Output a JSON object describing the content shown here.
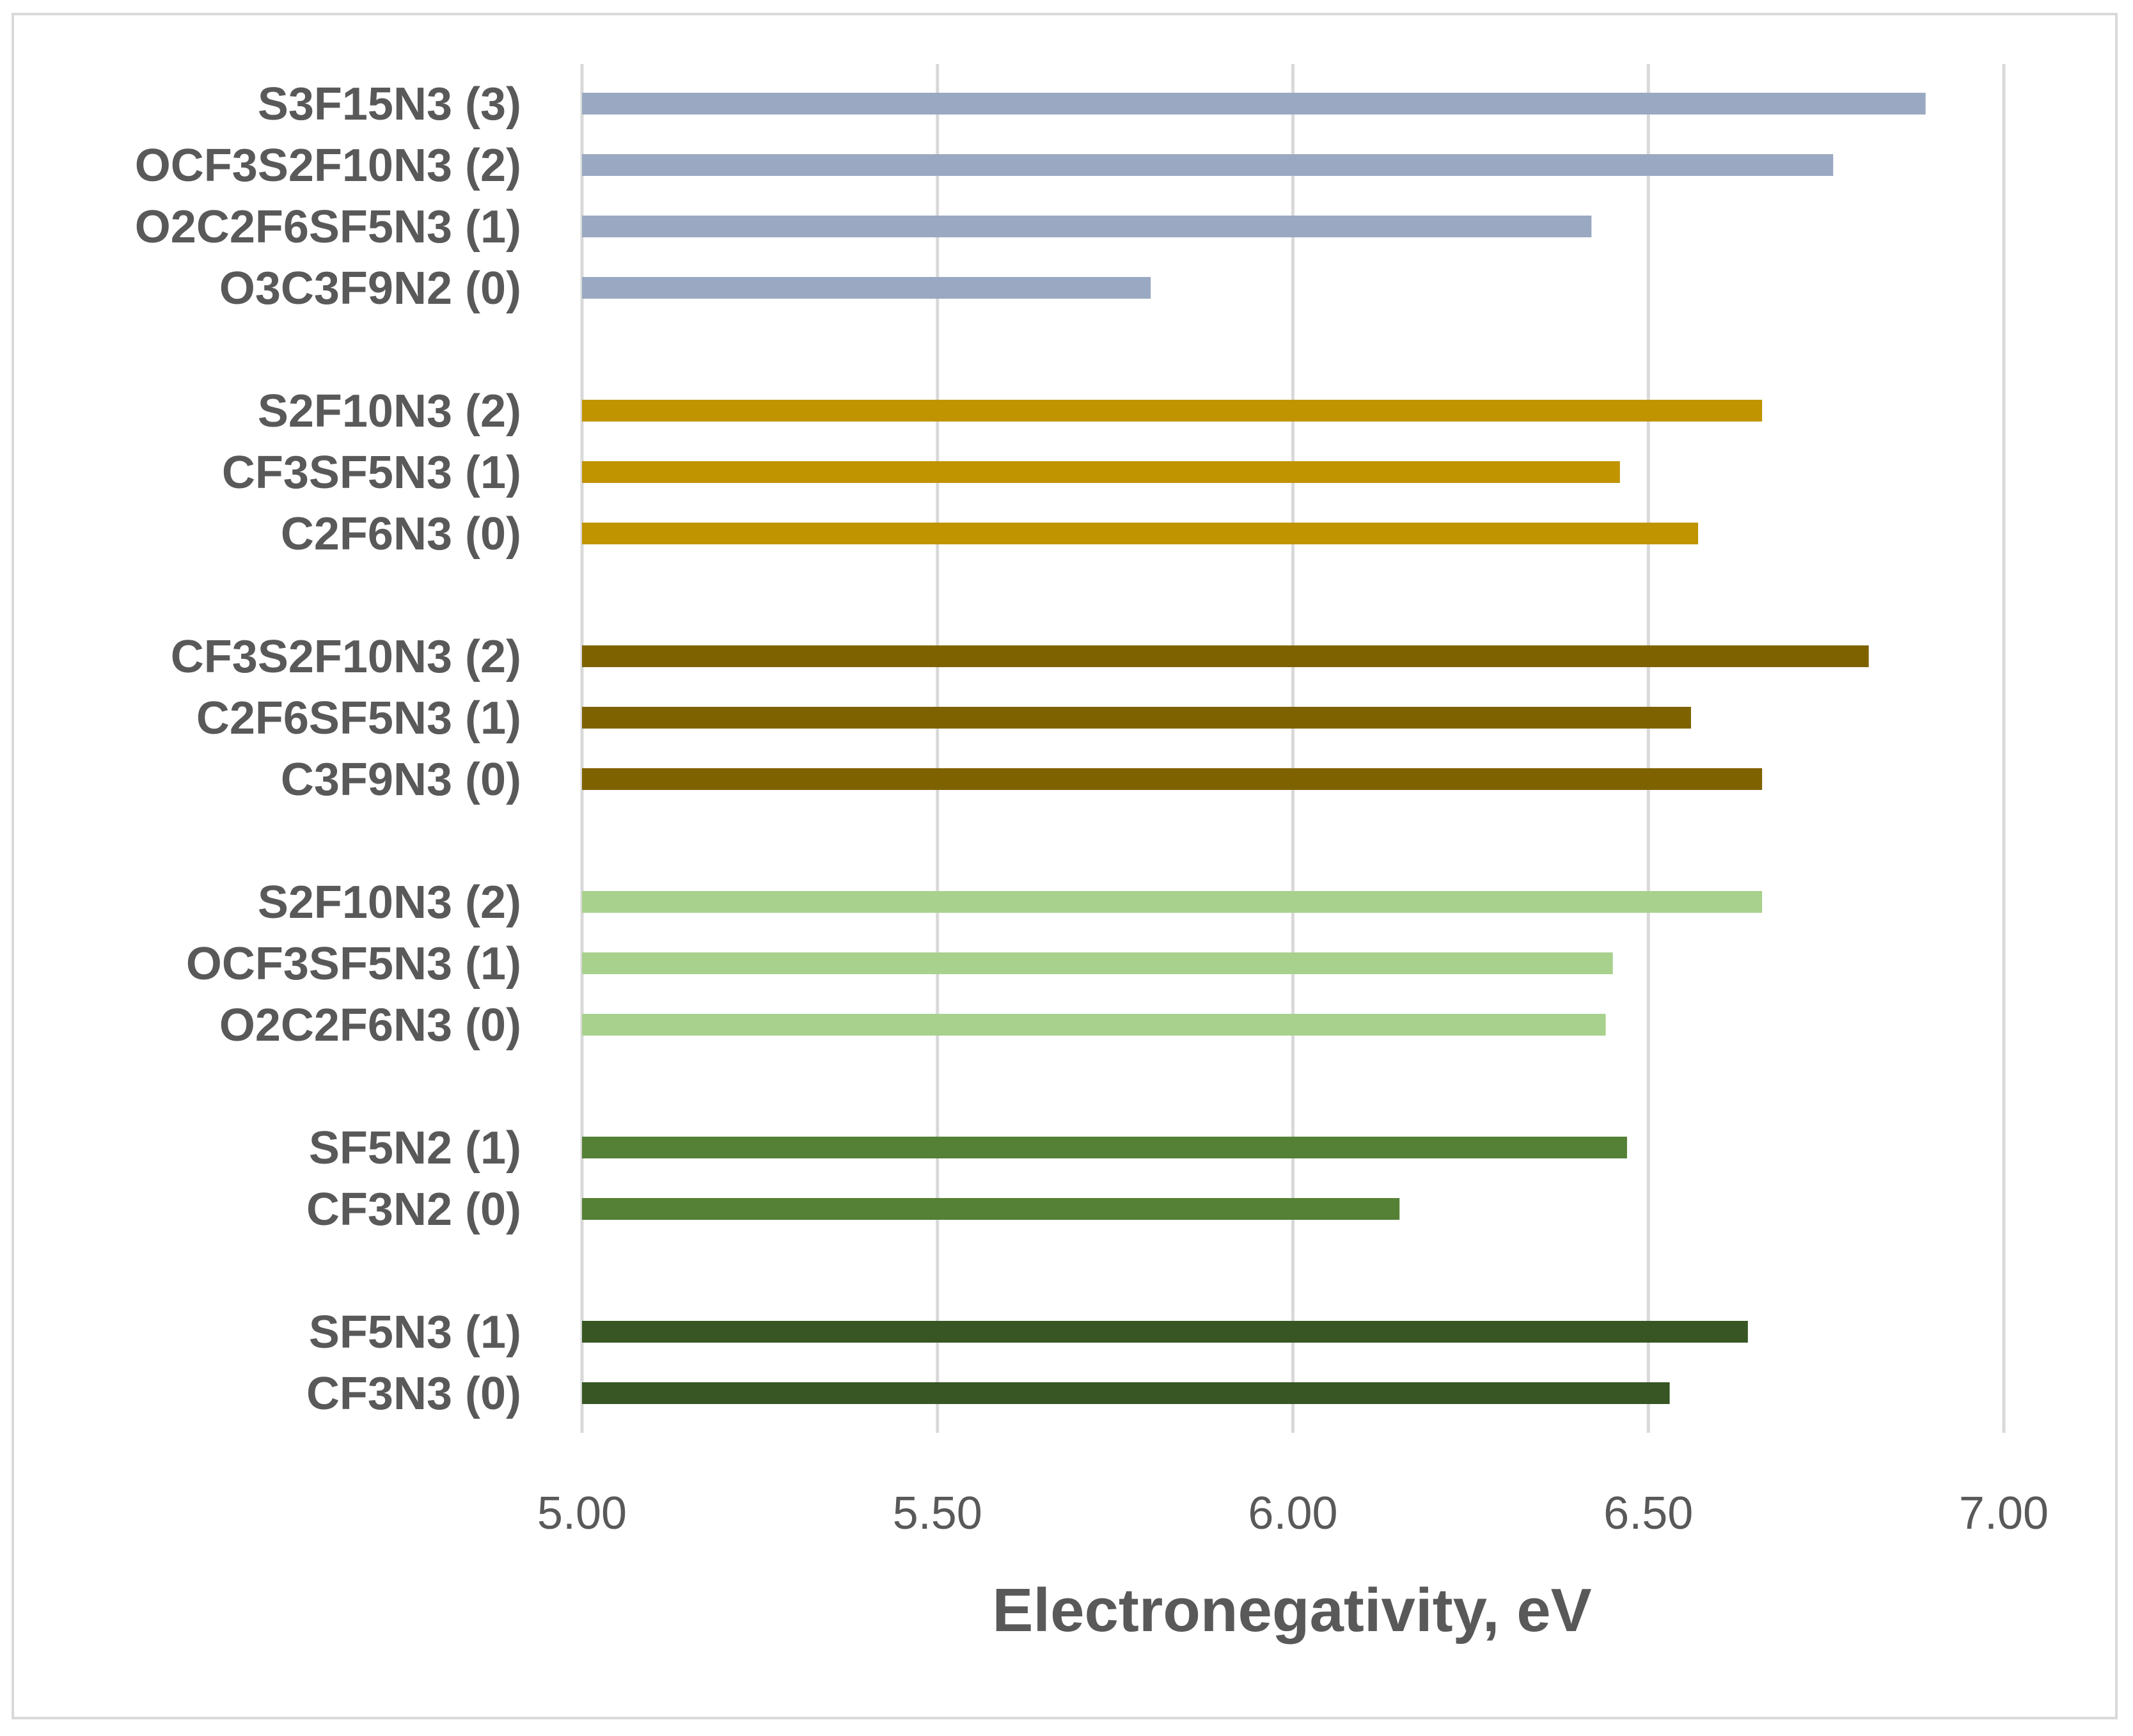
{
  "chart_data": {
    "type": "bar",
    "orientation": "horizontal",
    "title": "",
    "xlabel": "Electronegativity, eV",
    "ylabel": "",
    "xlim": [
      5.0,
      7.0
    ],
    "x_ticks": [
      "5.00",
      "5.50",
      "6.00",
      "6.50",
      "7.00"
    ],
    "grid": "vertical",
    "legend": "none",
    "groups": [
      {
        "name": "group-1",
        "color": "#9aa9c1",
        "bars": [
          {
            "label": "S3F15N3 (3)",
            "value": 6.89
          },
          {
            "label": "OCF3S2F10N3 (2)",
            "value": 6.76
          },
          {
            "label": "O2C2F6SF5N3 (1)",
            "value": 6.42
          },
          {
            "label": "O3C3F9N2 (0)",
            "value": 5.8
          }
        ]
      },
      {
        "name": "group-2",
        "color": "#c09300",
        "bars": [
          {
            "label": "S2F10N3 (2)",
            "value": 6.66
          },
          {
            "label": "CF3SF5N3 (1)",
            "value": 6.46
          },
          {
            "label": "C2F6N3 (0)",
            "value": 6.57
          }
        ]
      },
      {
        "name": "group-3",
        "color": "#7f6200",
        "bars": [
          {
            "label": "CF3S2F10N3 (2)",
            "value": 6.81
          },
          {
            "label": "C2F6SF5N3 (1)",
            "value": 6.56
          },
          {
            "label": "C3F9N3 (0)",
            "value": 6.66
          }
        ]
      },
      {
        "name": "group-4",
        "color": "#a8d18d",
        "bars": [
          {
            "label": "S2F10N3 (2)",
            "value": 6.66
          },
          {
            "label": "OCF3SF5N3 (1)",
            "value": 6.45
          },
          {
            "label": "O2C2F6N3 (0)",
            "value": 6.44
          }
        ]
      },
      {
        "name": "group-5",
        "color": "#548135",
        "bars": [
          {
            "label": "SF5N2 (1)",
            "value": 6.47
          },
          {
            "label": "CF3N2 (0)",
            "value": 6.15
          }
        ]
      },
      {
        "name": "group-6",
        "color": "#375623",
        "bars": [
          {
            "label": "SF5N3 (1)",
            "value": 6.64
          },
          {
            "label": "CF3N3 (0)",
            "value": 6.53
          }
        ]
      }
    ]
  }
}
